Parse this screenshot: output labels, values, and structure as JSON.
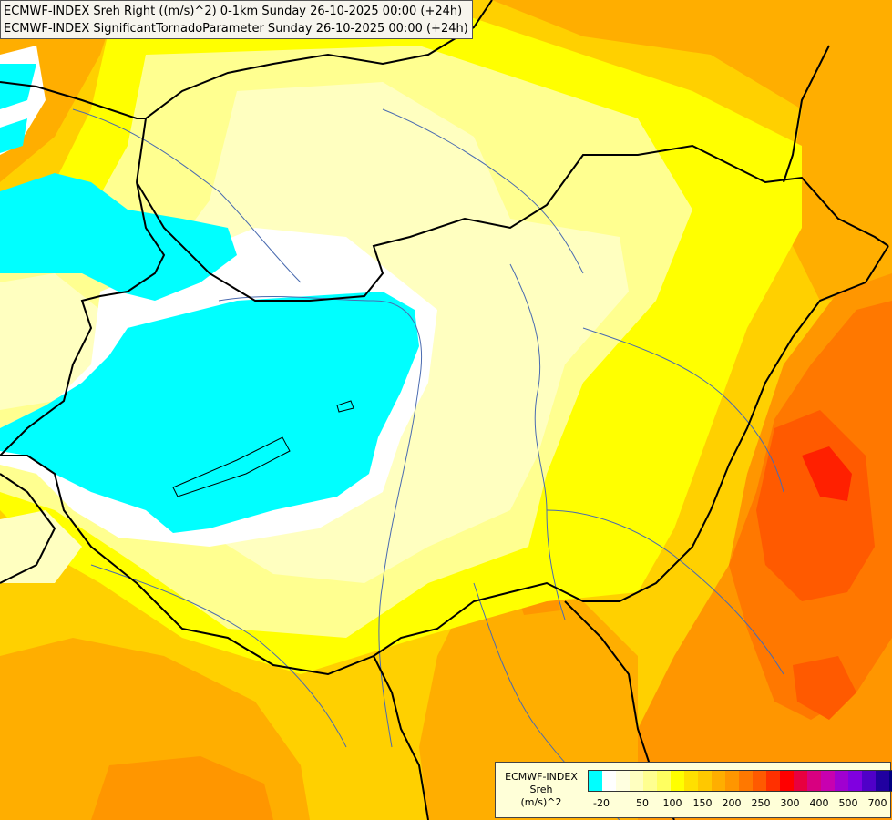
{
  "header": {
    "line1": "ECMWF-INDEX Sreh Right ((m/s)^2) 0-1km Sunday 26-10-2025 00:00 (+24h)",
    "line2": "ECMWF-INDEX SignificantTornadoParameter Sunday 26-10-2025 00:00 (+24h)"
  },
  "legend": {
    "title1": "ECMWF-INDEX",
    "title2": "Sreh",
    "title3": "(m/s)^2",
    "colors": [
      "#00ffff",
      "#ffffff",
      "#ffffe0",
      "#ffffc0",
      "#ffff90",
      "#ffff60",
      "#ffff00",
      "#ffe000",
      "#ffc800",
      "#ffae00",
      "#ff9600",
      "#ff7800",
      "#ff5a00",
      "#ff3000",
      "#ff0000",
      "#e80040",
      "#d80080",
      "#c800b0",
      "#a000d0",
      "#8000e0",
      "#5000c8",
      "#2000a0",
      "#000080"
    ],
    "tick_labels": [
      "-20",
      "50",
      "100",
      "150",
      "200",
      "250",
      "300",
      "400",
      "500",
      "700"
    ]
  }
}
